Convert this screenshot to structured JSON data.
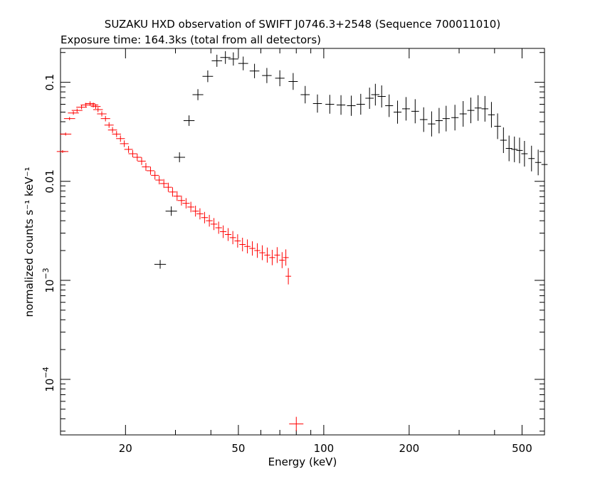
{
  "chart_data": {
    "type": "scatter",
    "title": "SUZAKU HXD observation of SWIFT J0746.3+2548 (Sequence 700011010)",
    "subtitle": "Exposure time: 164.3ks (total from all detectors)",
    "xlabel": "Energy (keV)",
    "ylabel": "normalized counts s⁻¹ keV⁻¹",
    "xscale": "log",
    "yscale": "log",
    "xlim": [
      11.8,
      600
    ],
    "ylim": [
      2.75e-05,
      0.22
    ],
    "grid": false,
    "legend": "none",
    "x_ticks": [
      {
        "value": 20,
        "label": "20"
      },
      {
        "value": 50,
        "label": "50"
      },
      {
        "value": 100,
        "label": "100"
      },
      {
        "value": 200,
        "label": "200"
      },
      {
        "value": 500,
        "label": "500"
      }
    ],
    "y_ticks": [
      {
        "value": 0.1,
        "label": "0.1"
      },
      {
        "value": 0.01,
        "label": "0.01"
      },
      {
        "value": 0.001,
        "base": "10",
        "exp": "−3"
      },
      {
        "value": 0.0001,
        "base": "10",
        "exp": "−4"
      }
    ],
    "series": [
      {
        "color": "#ff0000",
        "x": [
          12,
          12.3,
          12.7,
          13.1,
          13.5,
          14,
          14.5,
          15,
          15.4,
          15.7,
          16,
          16.5,
          17,
          17.5,
          18,
          18.6,
          19.2,
          19.8,
          20.5,
          21.2,
          22,
          22.8,
          23.6,
          24.5,
          25.4,
          26.3,
          27.3,
          28.3,
          29.3,
          30.4,
          31.5,
          32.7,
          34,
          35.3,
          36.6,
          38,
          39.5,
          41,
          42.6,
          44.2,
          46,
          47.8,
          49.7,
          51.7,
          53.8,
          56,
          58.3,
          60.7,
          63.2,
          65.8,
          68.5,
          71.3,
          73.5,
          75
        ],
        "y": [
          0.02,
          0.03,
          0.043,
          0.049,
          0.052,
          0.056,
          0.059,
          0.061,
          0.059,
          0.057,
          0.053,
          0.048,
          0.043,
          0.037,
          0.033,
          0.03,
          0.027,
          0.024,
          0.021,
          0.019,
          0.0175,
          0.016,
          0.014,
          0.0128,
          0.0115,
          0.0103,
          0.0095,
          0.0087,
          0.0078,
          0.0071,
          0.0064,
          0.006,
          0.0055,
          0.005,
          0.0047,
          0.0043,
          0.004,
          0.0037,
          0.0034,
          0.0031,
          0.0029,
          0.0027,
          0.0025,
          0.0023,
          0.0022,
          0.0021,
          0.002,
          0.0019,
          0.0018,
          0.0017,
          0.0018,
          0.0016,
          0.0017,
          0.0011
        ]
      },
      {
        "color": "#ff0000",
        "x": [
          80
        ],
        "y": [
          3.55e-05
        ]
      },
      {
        "color": "#000000",
        "x": [
          26.5,
          29,
          31,
          33.5,
          36,
          39,
          42,
          45,
          48,
          52,
          57,
          63,
          70,
          78,
          86,
          95,
          105,
          115,
          125,
          135,
          145,
          152,
          160,
          170,
          182,
          195,
          210,
          225,
          240,
          255,
          270,
          290,
          310,
          330,
          350,
          370,
          390,
          410,
          430,
          450,
          470,
          490,
          510,
          540,
          570,
          600
        ],
        "y": [
          0.00145,
          0.005,
          0.0175,
          0.041,
          0.075,
          0.115,
          0.165,
          0.178,
          0.172,
          0.155,
          0.13,
          0.117,
          0.11,
          0.102,
          0.075,
          0.061,
          0.06,
          0.059,
          0.058,
          0.06,
          0.069,
          0.075,
          0.072,
          0.058,
          0.05,
          0.054,
          0.051,
          0.042,
          0.038,
          0.041,
          0.043,
          0.044,
          0.048,
          0.052,
          0.055,
          0.054,
          0.047,
          0.036,
          0.026,
          0.0215,
          0.021,
          0.0205,
          0.019,
          0.017,
          0.0155,
          0.0148
        ]
      }
    ]
  }
}
